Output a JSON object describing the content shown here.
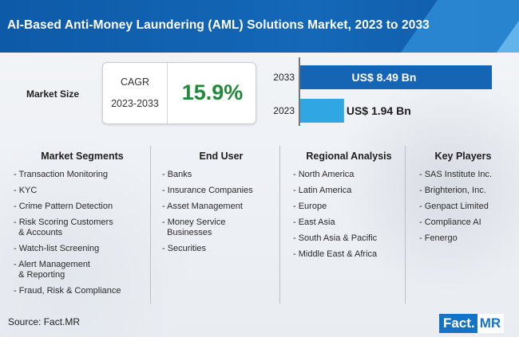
{
  "header": {
    "title": "AI-Based Anti-Money Laundering (AML) Solutions Market, 2023 to 2033"
  },
  "market_size_label": "Market Size",
  "cagr": {
    "label": "CAGR",
    "period": "2023-2033",
    "value": "15.9%"
  },
  "chart_data": {
    "type": "bar",
    "orientation": "horizontal",
    "categories": [
      "2033",
      "2023"
    ],
    "values": [
      8.49,
      1.94
    ],
    "value_labels": [
      "US$ 8.49 Bn",
      "US$ 1.94 Bn"
    ],
    "colors": [
      "#1565b4",
      "#30a7e2"
    ],
    "xlim": [
      0,
      8.49
    ]
  },
  "columns": [
    {
      "heading": "Market Segments",
      "items": [
        "- Transaction Monitoring",
        "- KYC",
        "- Crime Pattern Detection",
        "- Risk Scoring Customers\n  & Accounts",
        "- Watch-list Screening",
        "- Alert Management\n  & Reporting",
        "- Fraud, Risk & Compliance"
      ]
    },
    {
      "heading": "End User",
      "items": [
        "- Banks",
        "- Insurance Companies",
        "- Asset Management",
        "- Money Service\n  Businesses",
        "- Securities"
      ]
    },
    {
      "heading": "Regional Analysis",
      "items": [
        "- North America",
        "- Latin America",
        "- Europe",
        "- East Asia",
        "- South Asia & Pacific",
        "- Middle East & Africa"
      ]
    },
    {
      "heading": "Key Players",
      "items": [
        "- SAS Institute Inc.",
        "- Brighterion, Inc.",
        "- Genpact Limited",
        "- Compliance AI",
        "- Fenergo"
      ]
    }
  ],
  "source": "Source: Fact.MR",
  "logo": {
    "part1": "Fact.",
    "part2": "MR"
  }
}
